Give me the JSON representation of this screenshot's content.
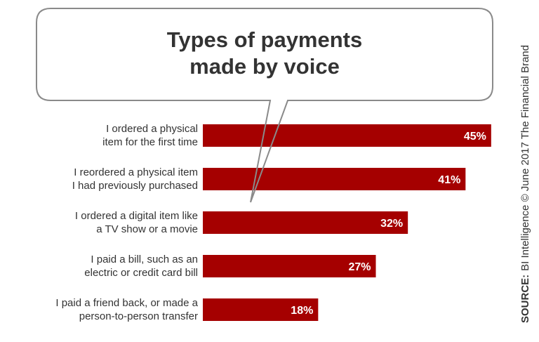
{
  "chart_data": {
    "type": "bar",
    "orientation": "horizontal",
    "title": "Types of payments\nmade by voice",
    "categories": [
      "I ordered a physical\nitem for the first time",
      "I reordered a physical item\nI had previously purchased",
      "I ordered a digital item like\na TV show or a movie",
      "I paid a bill, such as an\nelectric or credit card bill",
      "I paid a friend back, or made a\nperson-to-person transfer"
    ],
    "values": [
      45,
      41,
      32,
      27,
      18
    ],
    "value_labels": [
      "45%",
      "41%",
      "32%",
      "27%",
      "18%"
    ],
    "color": "#a50000",
    "source_label": "SOURCE:",
    "source": "BI Intelligence © June 2017 The Financial Brand"
  }
}
